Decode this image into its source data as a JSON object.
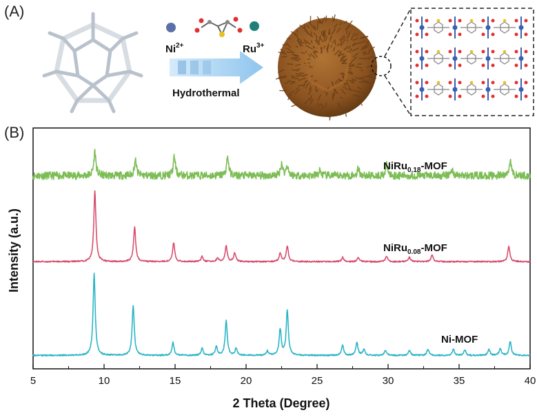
{
  "panels": {
    "a_label": "(A)",
    "b_label": "(B)"
  },
  "schematic": {
    "ion_left": "Ni",
    "ion_left_charge": "2+",
    "ion_right": "Ru",
    "ion_right_charge": "3+",
    "process": "Hydrothermal",
    "colors": {
      "ni_ball": "#5b6fa8",
      "ru_ball": "#1f7f7a",
      "arrow": "#8ec5ee",
      "mof": "#8a5220",
      "frame": "#b9c2cc"
    }
  },
  "chart_data": {
    "type": "line",
    "xlabel": "2 Theta (Degree)",
    "ylabel": "Intensity (a.u.)",
    "xlim": [
      5,
      40
    ],
    "xticks": [
      5,
      10,
      15,
      20,
      25,
      30,
      35,
      40
    ],
    "grid": false,
    "series": [
      {
        "name_main": "NiRu",
        "name_sub": "0.18",
        "name_tail": "-MOF",
        "color": "#7cbd55",
        "offset": 2.05,
        "baseline": 0.06,
        "noise": 0.045,
        "peaks": [
          [
            9.35,
            0.28
          ],
          [
            12.2,
            0.18
          ],
          [
            14.95,
            0.22
          ],
          [
            18.7,
            0.22
          ],
          [
            22.5,
            0.14
          ],
          [
            22.9,
            0.12
          ],
          [
            25.2,
            0.06
          ],
          [
            27.9,
            0.08
          ],
          [
            29.9,
            0.12
          ],
          [
            34.5,
            0.07
          ],
          [
            38.6,
            0.18
          ]
        ]
      },
      {
        "name_main": "NiRu",
        "name_sub": "0.08",
        "name_tail": "-MOF",
        "color": "#d74e6e",
        "offset": 1.08,
        "baseline": 0.03,
        "noise": 0.008,
        "peaks": [
          [
            9.35,
            0.82
          ],
          [
            12.15,
            0.4
          ],
          [
            14.9,
            0.22
          ],
          [
            16.9,
            0.06
          ],
          [
            18.0,
            0.04
          ],
          [
            18.6,
            0.18
          ],
          [
            19.2,
            0.1
          ],
          [
            22.4,
            0.1
          ],
          [
            22.9,
            0.18
          ],
          [
            26.8,
            0.05
          ],
          [
            27.9,
            0.05
          ],
          [
            29.9,
            0.06
          ],
          [
            31.5,
            0.05
          ],
          [
            33.1,
            0.08
          ],
          [
            38.5,
            0.18
          ]
        ]
      },
      {
        "name_main": "Ni-MOF",
        "name_sub": "",
        "name_tail": "",
        "color": "#2bb4c6",
        "offset": 0.0,
        "baseline": 0.02,
        "noise": 0.008,
        "peaks": [
          [
            9.3,
            0.95
          ],
          [
            12.05,
            0.58
          ],
          [
            14.85,
            0.15
          ],
          [
            16.9,
            0.08
          ],
          [
            17.9,
            0.1
          ],
          [
            18.6,
            0.4
          ],
          [
            19.3,
            0.08
          ],
          [
            21.5,
            0.05
          ],
          [
            22.4,
            0.3
          ],
          [
            22.9,
            0.52
          ],
          [
            26.8,
            0.12
          ],
          [
            27.8,
            0.15
          ],
          [
            28.3,
            0.07
          ],
          [
            29.8,
            0.06
          ],
          [
            31.5,
            0.06
          ],
          [
            32.8,
            0.07
          ],
          [
            34.6,
            0.07
          ],
          [
            35.4,
            0.06
          ],
          [
            37.1,
            0.07
          ],
          [
            37.9,
            0.08
          ],
          [
            38.6,
            0.16
          ]
        ]
      }
    ]
  }
}
